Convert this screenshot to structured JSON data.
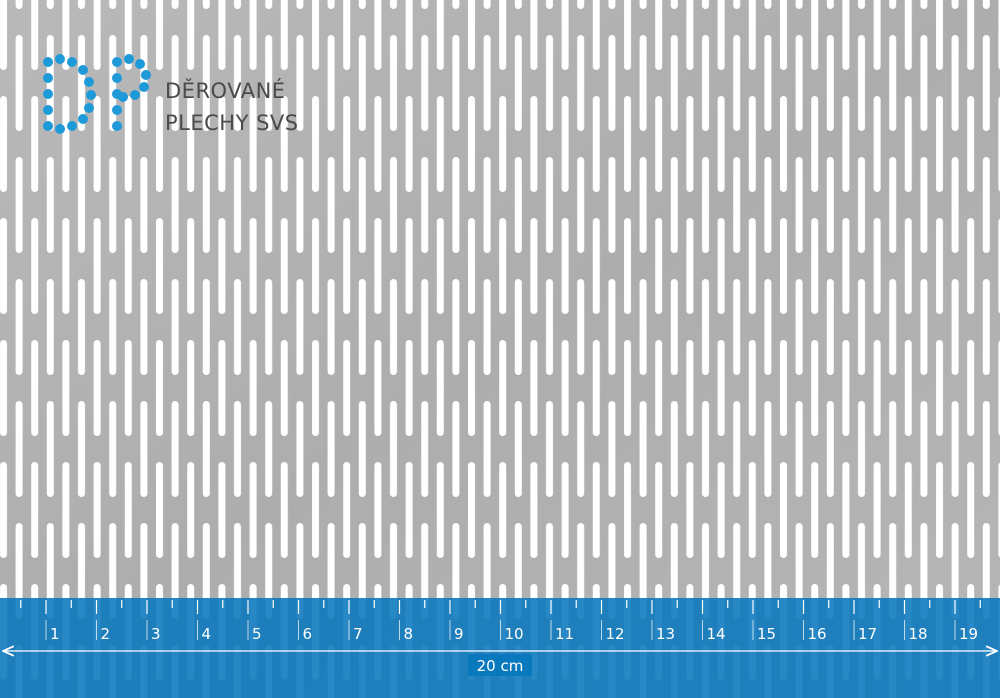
{
  "logo": {
    "line1": "DĚROVANÉ",
    "line2": "PLECHY SVS"
  },
  "ruler": {
    "labels": [
      1,
      2,
      3,
      4,
      5,
      6,
      7,
      8,
      9,
      10,
      11,
      12,
      13,
      14,
      15,
      16,
      17,
      18,
      19
    ],
    "length_label": "20 cm"
  }
}
